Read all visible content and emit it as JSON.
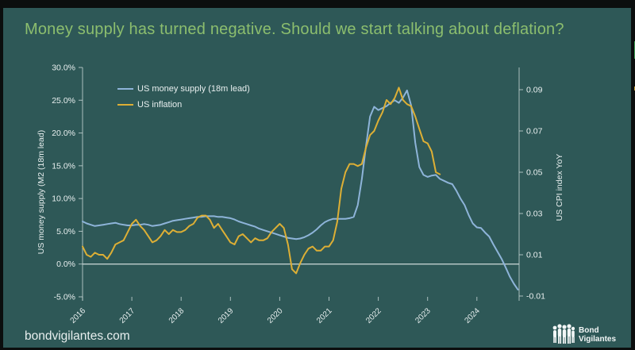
{
  "title": "Money supply has turned negative. Should we start talking about deflation?",
  "colors": {
    "background": "#2E5857",
    "title_green": "#8CBE6E",
    "money_supply_blue": "#8EB4D9",
    "inflation_yellow": "#DDAF35",
    "axis_text": "#E8EFEF",
    "axis_line": "#C9D8D8",
    "zero_line": "#EAF1F1"
  },
  "footer": {
    "website": "bondvigilantes.com",
    "logo_line1": "Bond",
    "logo_line2": "Vigilantes"
  },
  "chart_data": {
    "type": "line",
    "title": "Money supply has turned negative. Should we start talking about deflation?",
    "grid": "single horizontal line at left-axis 0.0% only",
    "legend_position": "inside top-left",
    "x_axis": {
      "tick_labels": [
        "2016",
        "2017",
        "2018",
        "2019",
        "2020",
        "2021",
        "2022",
        "2023",
        "2024"
      ],
      "tick_values": [
        2016,
        2017,
        2018,
        2019,
        2020,
        2021,
        2022,
        2023,
        2024
      ],
      "label_rotation_deg": -45
    },
    "left_axis": {
      "label": "US money supply (M2 (18m lead)",
      "tick_labels": [
        "30.0%",
        "25.0%",
        "20.0%",
        "15.0%",
        "10.0%",
        "5.0%",
        "0.0%",
        "-5.0%"
      ],
      "tick_values": [
        30,
        25,
        20,
        15,
        10,
        5,
        0,
        -5
      ],
      "range": [
        -5,
        30
      ],
      "unit": "percent"
    },
    "right_axis": {
      "label": "US CPI index YoY",
      "tick_labels": [
        "0.09",
        "0.07",
        "0.05",
        "0.03",
        "0.01",
        "-0.01"
      ],
      "tick_values": [
        0.09,
        0.07,
        0.05,
        0.03,
        0.01,
        -0.01
      ],
      "range": [
        -0.01,
        0.09
      ],
      "unit": "decimal YoY"
    },
    "series": [
      {
        "name": "US money supply (18m lead)",
        "axis": "left",
        "color": "#8EB4D9",
        "x_start": 2016.0,
        "x_step_months": 1,
        "values": [
          6.5,
          6.2,
          6.0,
          5.8,
          5.9,
          6.0,
          6.1,
          6.2,
          6.3,
          6.1,
          6.0,
          5.9,
          5.9,
          6.0,
          6.0,
          6.1,
          6.0,
          5.8,
          5.9,
          6.0,
          6.2,
          6.4,
          6.6,
          6.7,
          6.8,
          6.9,
          7.0,
          7.1,
          7.2,
          7.2,
          7.3,
          7.3,
          7.3,
          7.2,
          7.2,
          7.1,
          7.0,
          6.8,
          6.5,
          6.3,
          6.1,
          5.9,
          5.7,
          5.4,
          5.2,
          5.0,
          4.8,
          4.6,
          4.4,
          4.2,
          4.0,
          3.9,
          3.8,
          3.9,
          4.1,
          4.4,
          4.8,
          5.3,
          5.9,
          6.4,
          6.7,
          6.9,
          6.9,
          6.9,
          6.9,
          7.0,
          7.2,
          9.0,
          13.0,
          18.0,
          22.5,
          24.0,
          23.5,
          23.8,
          24.1,
          24.6,
          25.0,
          24.6,
          25.4,
          26.5,
          24.2,
          18.5,
          14.8,
          13.6,
          13.3,
          13.5,
          13.6,
          13.0,
          12.7,
          12.4,
          12.2,
          11.2,
          10.0,
          9.0,
          7.5,
          6.2,
          5.6,
          5.5,
          4.8,
          4.2,
          3.0,
          1.9,
          0.8,
          -0.5,
          -1.9,
          -3.0,
          -3.9
        ]
      },
      {
        "name": "US inflation",
        "axis": "right",
        "color": "#DDAF35",
        "x_start": 2016.0,
        "x_step_months": 1,
        "values": [
          0.014,
          0.01,
          0.009,
          0.011,
          0.01,
          0.01,
          0.008,
          0.011,
          0.015,
          0.016,
          0.017,
          0.021,
          0.025,
          0.027,
          0.024,
          0.022,
          0.019,
          0.016,
          0.017,
          0.019,
          0.022,
          0.02,
          0.022,
          0.021,
          0.021,
          0.022,
          0.024,
          0.025,
          0.028,
          0.029,
          0.029,
          0.027,
          0.023,
          0.025,
          0.022,
          0.019,
          0.016,
          0.015,
          0.019,
          0.02,
          0.018,
          0.016,
          0.018,
          0.017,
          0.017,
          0.018,
          0.021,
          0.023,
          0.025,
          0.023,
          0.015,
          0.003,
          0.001,
          0.006,
          0.01,
          0.013,
          0.014,
          0.012,
          0.012,
          0.014,
          0.014,
          0.017,
          0.026,
          0.042,
          0.05,
          0.054,
          0.054,
          0.053,
          0.054,
          0.062,
          0.068,
          0.07,
          0.075,
          0.079,
          0.085,
          0.083,
          0.086,
          0.091,
          0.085,
          0.083,
          0.082,
          0.077,
          0.071,
          0.065,
          0.064,
          0.06,
          0.05,
          0.049
        ]
      }
    ]
  }
}
